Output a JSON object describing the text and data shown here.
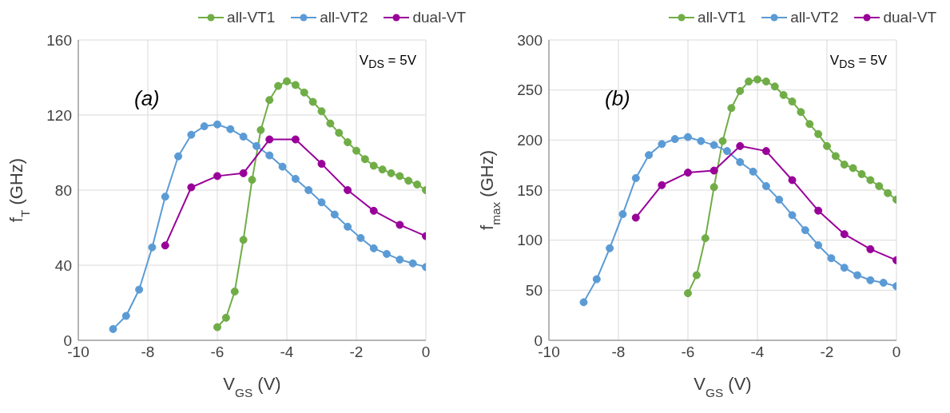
{
  "chart_data": [
    {
      "type": "line",
      "annotations": [
        "(a)",
        "V$_{DS}$ = 5V"
      ],
      "xlabel": "V$_{GS}$ (V)",
      "ylabel": "f$_{T}$ (GHz)",
      "xlim": [
        -10,
        0
      ],
      "xticks": [
        -10,
        -8,
        -6,
        -4,
        -2,
        0
      ],
      "ylim": [
        0,
        160
      ],
      "yticks": [
        0,
        40,
        80,
        120,
        160
      ],
      "grid": true,
      "legend": "top",
      "marker": "circle",
      "line_style": "solid",
      "series": [
        {
          "name": "all-VT1",
          "color": "#70ad47",
          "x": [
            -6,
            -5.75,
            -5.5,
            -5.25,
            -5,
            -4.75,
            -4.5,
            -4.25,
            -4,
            -3.75,
            -3.5,
            -3.25,
            -3,
            -2.75,
            -2.5,
            -2.25,
            -2,
            -1.75,
            -1.5,
            -1.25,
            -1,
            -0.75,
            -0.5,
            -0.25,
            0
          ],
          "values": [
            7,
            12,
            26,
            53.5,
            85.5,
            112,
            128,
            135.5,
            138,
            136,
            132,
            127,
            122,
            115.5,
            110.5,
            105.5,
            101,
            96.5,
            93,
            91,
            89,
            87.5,
            85,
            83,
            80
          ]
        },
        {
          "name": "all-VT2",
          "color": "#5b9bd5",
          "x": [
            -9,
            -8.625,
            -8.25,
            -7.875,
            -7.5,
            -7.125,
            -6.75,
            -6.375,
            -6,
            -5.625,
            -5.25,
            -4.875,
            -4.5,
            -4.125,
            -3.75,
            -3.375,
            -3,
            -2.625,
            -2.25,
            -1.875,
            -1.5,
            -1.125,
            -0.75,
            -0.375,
            0
          ],
          "values": [
            6,
            13,
            27,
            49.5,
            76.5,
            98,
            109.5,
            114,
            115,
            112.5,
            108.5,
            103.5,
            98.5,
            92.5,
            86,
            80,
            73.5,
            67,
            60.5,
            54.5,
            49,
            46,
            43,
            41,
            39
          ]
        },
        {
          "name": "dual-VT",
          "color": "#990099",
          "x": [
            -7.5,
            -6.75,
            -6,
            -5.25,
            -4.5,
            -3.75,
            -3,
            -2.25,
            -1.5,
            -0.75,
            0
          ],
          "values": [
            50.5,
            81.5,
            87.5,
            89,
            107,
            107,
            94,
            80,
            69,
            61.5,
            55.5
          ]
        }
      ]
    },
    {
      "type": "line",
      "annotations": [
        "(b)",
        "V$_{DS}$ = 5V"
      ],
      "xlabel": "V$_{GS}$ (V)",
      "ylabel": "f$_{max}$ (GHz)",
      "xlim": [
        -10,
        0
      ],
      "xticks": [
        -10,
        -8,
        -6,
        -4,
        -2,
        0
      ],
      "ylim": [
        0,
        300
      ],
      "yticks": [
        0,
        50,
        100,
        150,
        200,
        250,
        300
      ],
      "grid": true,
      "legend": "top",
      "marker": "circle",
      "line_style": "solid",
      "series": [
        {
          "name": "all-VT1",
          "color": "#70ad47",
          "x": [
            -6,
            -5.75,
            -5.5,
            -5.25,
            -5,
            -4.75,
            -4.5,
            -4.25,
            -4,
            -3.75,
            -3.5,
            -3.25,
            -3,
            -2.75,
            -2.5,
            -2.25,
            -2,
            -1.75,
            -1.5,
            -1.25,
            -1,
            -0.75,
            -0.5,
            -0.25,
            0
          ],
          "values": [
            47,
            65,
            102,
            153,
            199,
            232,
            249,
            258.5,
            260.5,
            258.5,
            253.5,
            245,
            238.5,
            228,
            216,
            206,
            194,
            184,
            175.5,
            172,
            166,
            160,
            154,
            147,
            140.5
          ]
        },
        {
          "name": "all-VT2",
          "color": "#5b9bd5",
          "x": [
            -9,
            -8.625,
            -8.25,
            -7.875,
            -7.5,
            -7.125,
            -6.75,
            -6.375,
            -6,
            -5.625,
            -5.25,
            -4.875,
            -4.5,
            -4.125,
            -3.75,
            -3.375,
            -3,
            -2.625,
            -2.25,
            -1.875,
            -1.5,
            -1.125,
            -0.75,
            -0.375,
            0
          ],
          "values": [
            38,
            61,
            92,
            126,
            162,
            185,
            196,
            201,
            203,
            199,
            195,
            189,
            178,
            168.5,
            154,
            140.5,
            125,
            110,
            95,
            82,
            72.5,
            65,
            60,
            57.5,
            54
          ]
        },
        {
          "name": "dual-VT",
          "color": "#990099",
          "x": [
            -7.5,
            -6.75,
            -6,
            -5.25,
            -4.5,
            -3.75,
            -3,
            -2.25,
            -1.5,
            -0.75,
            0
          ],
          "values": [
            122.5,
            155,
            167.5,
            169.5,
            194,
            189,
            160,
            129.5,
            106,
            91,
            80
          ]
        }
      ]
    }
  ]
}
